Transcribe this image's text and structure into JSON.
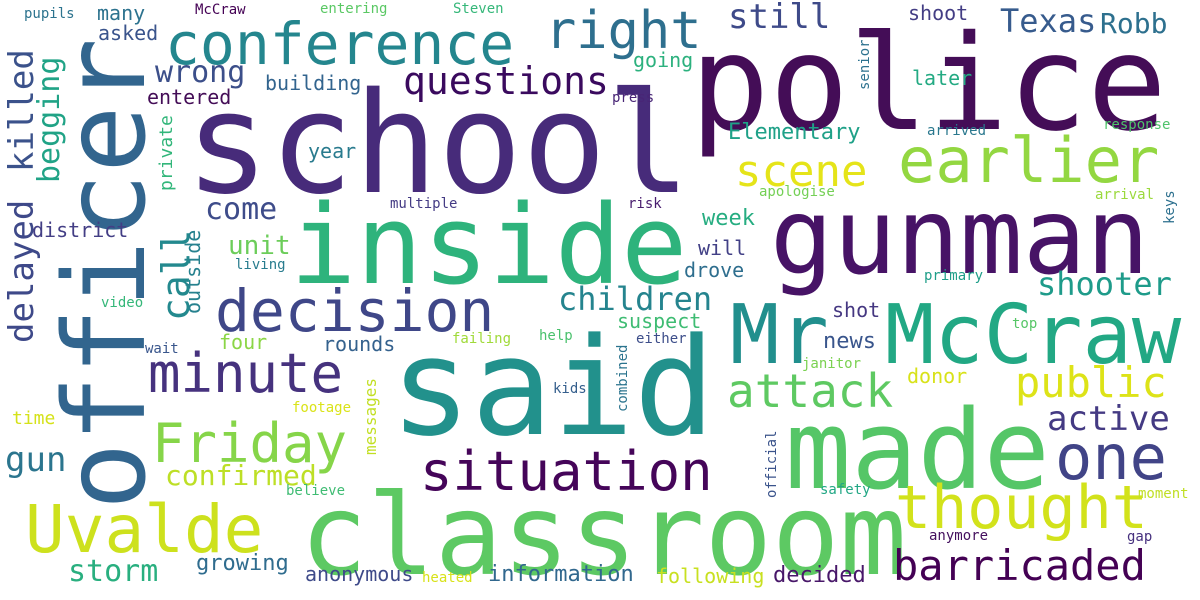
{
  "words": [
    {
      "text": "police",
      "color": "#440d57",
      "weight": 100
    },
    {
      "text": "school",
      "color": "#472b7a",
      "weight": 95
    },
    {
      "text": "officer",
      "color": "#32658e",
      "weight": 92
    },
    {
      "text": "said",
      "color": "#22918c",
      "weight": 90
    },
    {
      "text": "inside",
      "color": "#2eb37c",
      "weight": 85
    },
    {
      "text": "classroom",
      "color": "#5dc963",
      "weight": 85
    },
    {
      "text": "gunman",
      "color": "#471366",
      "weight": 80
    },
    {
      "text": "made",
      "color": "#55c667",
      "weight": 80
    },
    {
      "text": "Mr",
      "color": "#218f8d",
      "weight": 65
    },
    {
      "text": "McCraw",
      "color": "#22a884",
      "weight": 65
    },
    {
      "text": "conference",
      "color": "#24868e",
      "weight": 55
    },
    {
      "text": "decision",
      "color": "#3f4788",
      "weight": 55
    },
    {
      "text": "earlier",
      "color": "#93d741",
      "weight": 55
    },
    {
      "text": "Uvalde",
      "color": "#cde11d",
      "weight": 55
    },
    {
      "text": "one",
      "color": "#414487",
      "weight": 55
    },
    {
      "text": "right",
      "color": "#2e6f8e",
      "weight": 48
    },
    {
      "text": "minute",
      "color": "#46327e",
      "weight": 48
    },
    {
      "text": "Friday",
      "color": "#86d549",
      "weight": 48
    },
    {
      "text": "situation",
      "color": "#450559",
      "weight": 48
    },
    {
      "text": "thought",
      "color": "#d2e21b",
      "weight": 48
    },
    {
      "text": "barricaded",
      "color": "#440154",
      "weight": 40
    },
    {
      "text": "questions",
      "color": "#3a0a5e",
      "weight": 38
    },
    {
      "text": "public",
      "color": "#dde318",
      "weight": 38
    },
    {
      "text": "attack",
      "color": "#5ec962",
      "weight": 38
    },
    {
      "text": "scene",
      "color": "#e5e419",
      "weight": 38
    },
    {
      "text": "killed",
      "color": "#3b528b",
      "weight": 36
    },
    {
      "text": "delayed",
      "color": "#3e4989",
      "weight": 36
    },
    {
      "text": "call",
      "color": "#23898e",
      "weight": 36
    },
    {
      "text": "wrong",
      "color": "#3c4f8a",
      "weight": 30
    },
    {
      "text": "still",
      "color": "#3e4a89",
      "weight": 30
    },
    {
      "text": "Texas",
      "color": "#375b8d",
      "weight": 30
    },
    {
      "text": "children",
      "color": "#25848e",
      "weight": 30
    },
    {
      "text": "shooter",
      "color": "#1e9b8a",
      "weight": 30
    },
    {
      "text": "gun",
      "color": "#2b758e",
      "weight": 30
    },
    {
      "text": "storm",
      "color": "#29af7f",
      "weight": 28
    },
    {
      "text": "active",
      "color": "#443a83",
      "weight": 28
    },
    {
      "text": "come",
      "color": "#3e4c8a",
      "weight": 26
    },
    {
      "text": "begging",
      "color": "#20a386",
      "weight": 26
    },
    {
      "text": "confirmed",
      "color": "#bddf26",
      "weight": 26
    },
    {
      "text": "Robb",
      "color": "#2d708e",
      "weight": 24
    },
    {
      "text": "information",
      "color": "#31688e",
      "weight": 20
    },
    {
      "text": "decided",
      "color": "#481769",
      "weight": 20
    },
    {
      "text": "growing",
      "color": "#2f6c8e",
      "weight": 20
    },
    {
      "text": "unit",
      "color": "#6ccd5a",
      "weight": 22
    },
    {
      "text": "outside",
      "color": "#26818e",
      "weight": 18
    },
    {
      "text": "building",
      "color": "#32648e",
      "weight": 18
    },
    {
      "text": "Elementary",
      "color": "#1fa188",
      "weight": 18
    },
    {
      "text": "week",
      "color": "#26ad81",
      "weight": 18
    },
    {
      "text": "drove",
      "color": "#2e6e8e",
      "weight": 18
    },
    {
      "text": "will",
      "color": "#424086",
      "weight": 18
    },
    {
      "text": "suspect",
      "color": "#3fbc73",
      "weight": 18
    },
    {
      "text": "news",
      "color": "#39558c",
      "weight": 18
    },
    {
      "text": "shot",
      "color": "#453781",
      "weight": 18
    },
    {
      "text": "four",
      "color": "#8bd646",
      "weight": 18
    },
    {
      "text": "rounds",
      "color": "#34618d",
      "weight": 18
    },
    {
      "text": "donor",
      "color": "#d8e219",
      "weight": 18
    },
    {
      "text": "anonymous",
      "color": "#3e4a89",
      "weight": 18
    },
    {
      "text": "following",
      "color": "#c8e020",
      "weight": 18
    },
    {
      "text": "year",
      "color": "#297b8e",
      "weight": 18
    },
    {
      "text": "entered",
      "color": "#440d57",
      "weight": 18
    },
    {
      "text": "asked",
      "color": "#3a548c",
      "weight": 16
    },
    {
      "text": "many",
      "color": "#2c728e",
      "weight": 16
    },
    {
      "text": "going",
      "color": "#2cb17e",
      "weight": 16
    },
    {
      "text": "shoot",
      "color": "#433d84",
      "weight": 16
    },
    {
      "text": "later",
      "color": "#24aa83",
      "weight": 16
    },
    {
      "text": "district",
      "color": "#433e85",
      "weight": 16
    },
    {
      "text": "private",
      "color": "#32b67a",
      "weight": 16
    },
    {
      "text": "messages",
      "color": "#c2df23",
      "weight": 14
    },
    {
      "text": "time",
      "color": "#d5e21a",
      "weight": 14
    },
    {
      "text": "kids",
      "color": "#355f8d",
      "weight": 12
    },
    {
      "text": "press",
      "color": "#482576",
      "weight": 12
    },
    {
      "text": "risk",
      "color": "#481c6e",
      "weight": 12
    },
    {
      "text": "multiple",
      "color": "#443b84",
      "weight": 12
    },
    {
      "text": "arrived",
      "color": "#2a788e",
      "weight": 12
    },
    {
      "text": "pupils",
      "color": "#2c738e",
      "weight": 12
    },
    {
      "text": "McCraw",
      "color": "#440154",
      "weight": 12
    },
    {
      "text": "entering",
      "color": "#5ac864",
      "weight": 12
    },
    {
      "text": "Steven",
      "color": "#35b779",
      "weight": 12
    },
    {
      "text": "senior",
      "color": "#2c718e",
      "weight": 12
    },
    {
      "text": "response",
      "color": "#4ec36b",
      "weight": 12
    },
    {
      "text": "apologise",
      "color": "#74d055",
      "weight": 12
    },
    {
      "text": "arrival",
      "color": "#9bd93c",
      "weight": 12
    },
    {
      "text": "keys",
      "color": "#2d708e",
      "weight": 12
    },
    {
      "text": "living",
      "color": "#287c8e",
      "weight": 12
    },
    {
      "text": "primary",
      "color": "#1f9e89",
      "weight": 12
    },
    {
      "text": "video",
      "color": "#35b779",
      "weight": 12
    },
    {
      "text": "help",
      "color": "#4ac16d",
      "weight": 12
    },
    {
      "text": "failing",
      "color": "#a0da39",
      "weight": 12
    },
    {
      "text": "either",
      "color": "#3d4e8a",
      "weight": 12
    },
    {
      "text": "top",
      "color": "#56c667",
      "weight": 12
    },
    {
      "text": "wait",
      "color": "#39568c",
      "weight": 12
    },
    {
      "text": "combined",
      "color": "#2b748e",
      "weight": 12
    },
    {
      "text": "janitor",
      "color": "#7ad151",
      "weight": 12
    },
    {
      "text": "footage",
      "color": "#dae319",
      "weight": 12
    },
    {
      "text": "official",
      "color": "#3a538b",
      "weight": 12
    },
    {
      "text": "believe",
      "color": "#3fbc73",
      "weight": 12
    },
    {
      "text": "safety",
      "color": "#22a785",
      "weight": 12
    },
    {
      "text": "moment",
      "color": "#c0df25",
      "weight": 12
    },
    {
      "text": "anymore",
      "color": "#440f5e",
      "weight": 12
    },
    {
      "text": "gap",
      "color": "#46307e",
      "weight": 12
    },
    {
      "text": "heated",
      "color": "#d8e219",
      "weight": 12
    }
  ]
}
